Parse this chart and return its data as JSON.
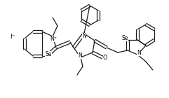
{
  "background_color": "#ffffff",
  "line_color": "#1a1a1a",
  "text_color": "#000000",
  "figsize": [
    2.41,
    1.4
  ],
  "dpi": 100,
  "iodide_label": "I⁻",
  "n_plus_label": "N⁺",
  "n_label": "N",
  "o_label": "O",
  "se_label": "Se",
  "lw": 0.9
}
